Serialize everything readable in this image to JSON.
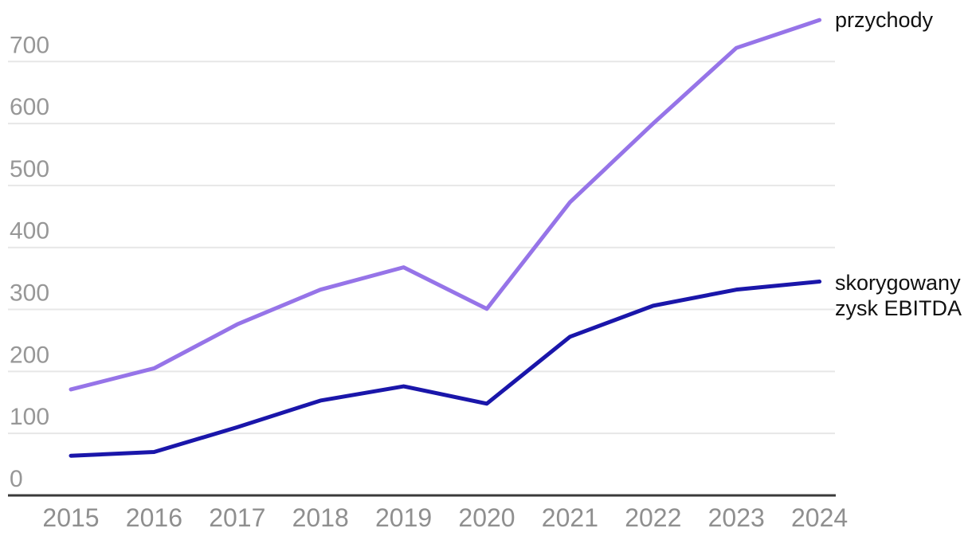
{
  "chart_data": {
    "type": "line",
    "x": [
      2015,
      2016,
      2017,
      2018,
      2019,
      2020,
      2021,
      2022,
      2023,
      2024
    ],
    "series": [
      {
        "name": "przychody",
        "color": "#9674e8",
        "values": [
          171,
          205,
          276,
          332,
          368,
          301,
          473,
          600,
          722,
          767
        ]
      },
      {
        "name": "skorygowany zysk EBITDA",
        "color": "#1a16aa",
        "values": [
          64,
          70,
          110,
          153,
          176,
          148,
          256,
          306,
          332,
          345
        ]
      }
    ],
    "ylim": [
      0,
      772
    ],
    "yticks": [
      0,
      100,
      200,
      300,
      400,
      500,
      600,
      700
    ],
    "xticks": [
      "2015",
      "2016",
      "2017",
      "2018",
      "2019",
      "2020",
      "2021",
      "2022",
      "2023",
      "2024"
    ],
    "grid": "horizontal-only",
    "legend_position": "direct-labels-right-of-line-ends"
  },
  "legend": {
    "series1": "przychody",
    "series2_line1": "skorygowany",
    "series2_line2": "zysk EBITDA"
  },
  "colors": {
    "series1": "#9674e8",
    "series2": "#1a16aa",
    "gridline": "#e7e7e7",
    "axis_line": "#3a3a3a",
    "tick_text": "#909090",
    "label_text": "#111111",
    "background": "#ffffff"
  }
}
